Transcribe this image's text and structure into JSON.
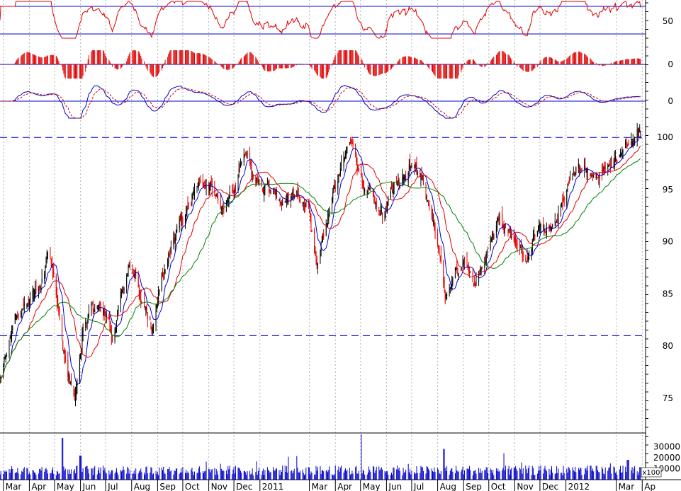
{
  "chart_data": [
    {
      "type": "line",
      "panel": "oscillator",
      "y_tick_labels": [
        "50"
      ],
      "upper_band": 70,
      "lower_band": 30,
      "series": [
        {
          "color": "#e00000"
        }
      ]
    },
    {
      "type": "bar",
      "panel": "histogram",
      "y_tick_labels": [
        "0"
      ],
      "series": [
        {
          "color": "#e00000"
        }
      ]
    },
    {
      "type": "line",
      "panel": "dual-line-oscillator",
      "y_tick_labels": [
        "0"
      ],
      "series": [
        {
          "color": "#0000cc",
          "style": "solid"
        },
        {
          "color": "#cc0000",
          "style": "dashed"
        }
      ]
    },
    {
      "type": "candlestick",
      "panel": "price",
      "y_tick_labels": [
        "75",
        "80",
        "85",
        "90",
        "95",
        "100"
      ],
      "ylim": [
        72,
        103
      ],
      "horizontal_lines": [
        100,
        81
      ],
      "moving_averages": [
        {
          "color": "#0000cc"
        },
        {
          "color": "#e00000"
        },
        {
          "color": "#008000"
        }
      ],
      "price_path": [
        [
          "2010-03-01",
          78
        ],
        [
          "2010-03-15",
          83
        ],
        [
          "2010-04-01",
          84
        ],
        [
          "2010-04-15",
          86
        ],
        [
          "2010-04-25",
          89
        ],
        [
          "2010-05-05",
          84
        ],
        [
          "2010-05-15",
          77
        ],
        [
          "2010-05-25",
          75
        ],
        [
          "2010-06-05",
          82
        ],
        [
          "2010-06-20",
          84
        ],
        [
          "2010-07-01",
          83
        ],
        [
          "2010-07-10",
          81
        ],
        [
          "2010-07-20",
          86
        ],
        [
          "2010-08-01",
          88
        ],
        [
          "2010-08-10",
          85
        ],
        [
          "2010-08-25",
          82
        ],
        [
          "2010-09-05",
          87
        ],
        [
          "2010-09-20",
          90
        ],
        [
          "2010-10-01",
          92
        ],
        [
          "2010-10-15",
          95
        ],
        [
          "2010-11-01",
          96
        ],
        [
          "2010-11-15",
          93
        ],
        [
          "2010-12-01",
          95
        ],
        [
          "2010-12-15",
          98
        ],
        [
          "2011-01-01",
          95
        ],
        [
          "2011-01-15",
          94
        ],
        [
          "2011-02-01",
          94
        ],
        [
          "2011-02-15",
          94
        ],
        [
          "2011-03-01",
          93
        ],
        [
          "2011-03-10",
          88
        ],
        [
          "2011-03-20",
          92
        ],
        [
          "2011-04-01",
          95
        ],
        [
          "2011-04-20",
          99
        ],
        [
          "2011-05-01",
          96
        ],
        [
          "2011-05-15",
          95
        ],
        [
          "2011-06-01",
          94
        ],
        [
          "2011-06-15",
          95
        ],
        [
          "2011-07-01",
          97
        ],
        [
          "2011-07-15",
          96
        ],
        [
          "2011-08-01",
          90
        ],
        [
          "2011-08-10",
          84
        ],
        [
          "2011-08-20",
          86
        ],
        [
          "2011-09-01",
          88
        ],
        [
          "2011-09-15",
          86
        ],
        [
          "2011-10-01",
          90
        ],
        [
          "2011-10-15",
          93
        ],
        [
          "2011-11-01",
          90
        ],
        [
          "2011-11-15",
          88
        ],
        [
          "2011-12-01",
          92
        ],
        [
          "2011-12-15",
          91
        ],
        [
          "2012-01-01",
          95
        ],
        [
          "2012-01-15",
          97
        ],
        [
          "2012-02-01",
          96
        ],
        [
          "2012-02-15",
          97
        ],
        [
          "2012-03-01",
          98
        ],
        [
          "2012-03-20",
          100
        ],
        [
          "2012-03-31",
          101
        ]
      ]
    },
    {
      "type": "bar",
      "panel": "volume",
      "y_tick_labels": [
        "30000",
        "20000",
        "10000"
      ],
      "unit_label": "x100",
      "ylim": [
        0,
        40000
      ],
      "series": [
        {
          "color": "#0000cc"
        }
      ],
      "spikes": [
        {
          "date": "2010-05-10",
          "value": 38000
        },
        {
          "date": "2010-06-01",
          "value": 22000
        },
        {
          "date": "2011-05-01",
          "value": 50000
        },
        {
          "date": "2011-08-08",
          "value": 28000
        },
        {
          "date": "2012-03-15",
          "value": 18000
        }
      ]
    }
  ],
  "x_axis": {
    "range": [
      "2010-02-25",
      "2012-04-05"
    ],
    "labels": [
      {
        "text": "Mar",
        "date": "2010-03-01"
      },
      {
        "text": "Apr",
        "date": "2010-04-01"
      },
      {
        "text": "May",
        "date": "2010-05-01"
      },
      {
        "text": "Jun",
        "date": "2010-06-01"
      },
      {
        "text": "Jul",
        "date": "2010-07-01"
      },
      {
        "text": "Aug",
        "date": "2010-08-01"
      },
      {
        "text": "Sep",
        "date": "2010-09-01"
      },
      {
        "text": "Oct",
        "date": "2010-10-01"
      },
      {
        "text": "Nov",
        "date": "2010-11-01"
      },
      {
        "text": "Dec",
        "date": "2010-12-01"
      },
      {
        "text": "2011",
        "date": "2011-01-01"
      },
      {
        "text": "Mar",
        "date": "2011-03-01"
      },
      {
        "text": "Apr",
        "date": "2011-04-01"
      },
      {
        "text": "May",
        "date": "2011-05-01"
      },
      {
        "text": "Jun",
        "date": "2011-06-01"
      },
      {
        "text": "Jul",
        "date": "2011-07-01"
      },
      {
        "text": "Aug",
        "date": "2011-08-01"
      },
      {
        "text": "Sep",
        "date": "2011-09-01"
      },
      {
        "text": "Oct",
        "date": "2011-10-01"
      },
      {
        "text": "Nov",
        "date": "2011-11-01"
      },
      {
        "text": "Dec",
        "date": "2011-12-01"
      },
      {
        "text": "2012",
        "date": "2012-01-01"
      },
      {
        "text": "Mar",
        "date": "2012-03-01"
      },
      {
        "text": "Ap",
        "date": "2012-04-01"
      }
    ]
  },
  "colors": {
    "grid": "#b4b4b4",
    "band_line": "#0000cc",
    "candle_up": "#000000",
    "candle_down": "#e00000"
  }
}
